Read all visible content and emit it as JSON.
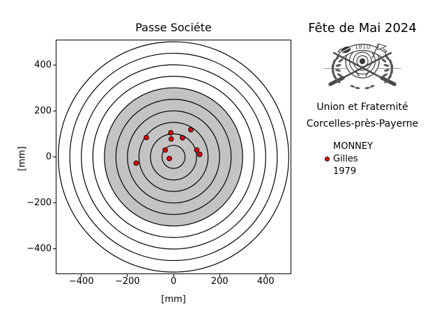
{
  "chart_data": {
    "type": "scatter",
    "title": "Passe Sociéte",
    "xlabel": "[mm]",
    "ylabel": "[mm]",
    "xlim": [
      -508,
      508
    ],
    "ylim": [
      -506,
      506
    ],
    "x_ticks": [
      -400,
      -200,
      0,
      200,
      400
    ],
    "y_ticks": [
      400,
      200,
      0,
      -200,
      -400
    ],
    "grid": false,
    "legend_position": "outside-right",
    "target_rings_mm": [
      50,
      100,
      150,
      200,
      250,
      300,
      350,
      400,
      450,
      500
    ],
    "gray_zone_radius_mm": 300,
    "shot_marker_radius_mm": 10,
    "colors": {
      "gray_zone": "#c3c3c3",
      "ring_stroke": "#000000",
      "shot_fill": "#e8000b",
      "shot_edge": "#1a0000"
    },
    "series": [
      {
        "name": "MONNEY Gilles 1979",
        "marker": "o",
        "points_mm": [
          [
            -118,
            84
          ],
          [
            -12,
            105
          ],
          [
            -10,
            78
          ],
          [
            39,
            83
          ],
          [
            75,
            118
          ],
          [
            -36,
            30
          ],
          [
            101,
            30
          ],
          [
            114,
            11
          ],
          [
            -18,
            -7
          ],
          [
            -162,
            -27
          ]
        ]
      }
    ]
  },
  "side_panel": {
    "event_title": "Fête de Mai 2024",
    "logo": {
      "icon": "crossed-rifles-target-emblem",
      "banner_year": "1810"
    },
    "society_motto": "Union et Fraternité",
    "society_place": "Corcelles-près-Payerne",
    "legend": {
      "last_name": "MONNEY",
      "first_name": "Gilles",
      "birth_year": "1979",
      "marker_color": "#e8000b"
    }
  }
}
